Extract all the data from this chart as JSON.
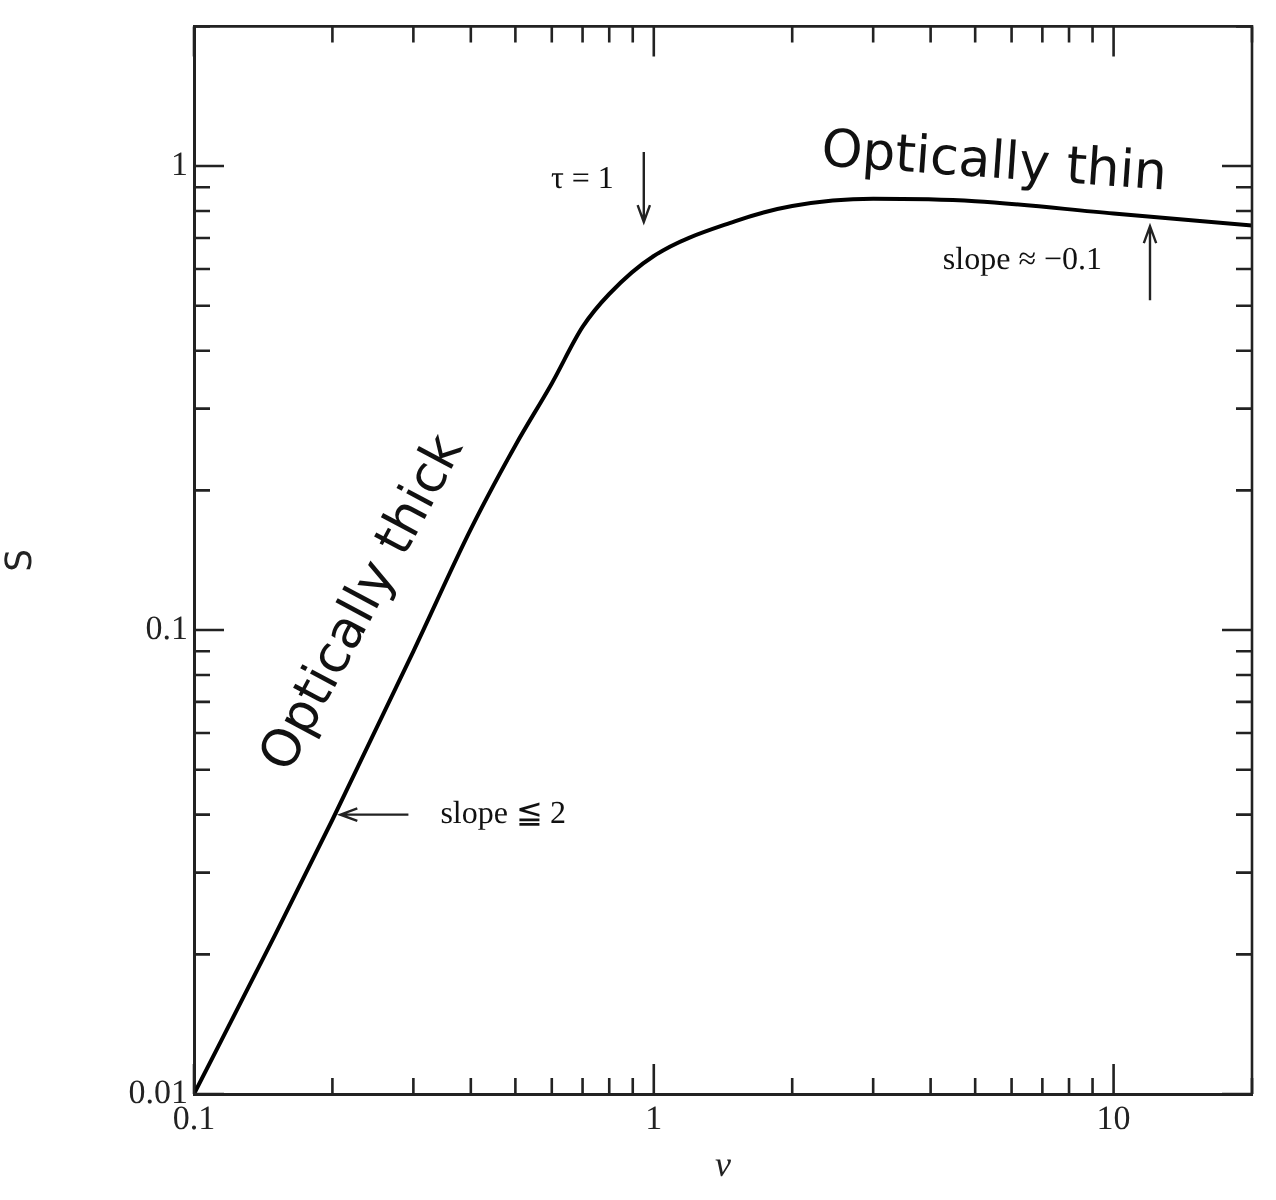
{
  "chart_data": {
    "type": "line",
    "xlabel": "ν",
    "ylabel": "S",
    "log": "xy",
    "grid": false,
    "legend": false,
    "marker": "none",
    "line_style": "solid",
    "xlim": [
      0.1,
      20
    ],
    "ylim": [
      0.01,
      2
    ],
    "xticks": [
      0.1,
      {
        "value": 0.2,
        "label": null
      },
      {
        "value": 0.3,
        "label": null
      },
      {
        "value": 0.4,
        "label": null
      },
      {
        "value": 0.5,
        "label": null
      },
      {
        "value": 0.6,
        "label": null
      },
      {
        "value": 0.7,
        "label": null
      },
      {
        "value": 0.8,
        "label": null
      },
      {
        "value": 0.9,
        "label": null
      },
      1,
      {
        "value": 2,
        "label": null
      },
      {
        "value": 3,
        "label": null
      },
      {
        "value": 4,
        "label": null
      },
      {
        "value": 5,
        "label": null
      },
      {
        "value": 6,
        "label": null
      },
      {
        "value": 7,
        "label": null
      },
      {
        "value": 8,
        "label": null
      },
      {
        "value": 9,
        "label": null
      },
      10,
      {
        "value": 20,
        "label": null
      }
    ],
    "yticks": [
      0.01,
      {
        "value": 0.02,
        "label": null
      },
      {
        "value": 0.03,
        "label": null
      },
      {
        "value": 0.04,
        "label": null
      },
      {
        "value": 0.05,
        "label": null
      },
      {
        "value": 0.06,
        "label": null
      },
      {
        "value": 0.07,
        "label": null
      },
      {
        "value": 0.08,
        "label": null
      },
      {
        "value": 0.09,
        "label": null
      },
      0.1,
      {
        "value": 0.2,
        "label": null
      },
      {
        "value": 0.3,
        "label": null
      },
      {
        "value": 0.4,
        "label": null
      },
      {
        "value": 0.5,
        "label": null
      },
      {
        "value": 0.6,
        "label": null
      },
      {
        "value": 0.7,
        "label": null
      },
      {
        "value": 0.8,
        "label": null
      },
      {
        "value": 0.9,
        "label": null
      },
      1,
      {
        "value": 2,
        "label": null
      }
    ],
    "series": [
      {
        "color": "#000000",
        "x": [
          0.1,
          0.15,
          0.2,
          0.3,
          0.4,
          0.5,
          0.6,
          0.7,
          0.8,
          1,
          1.5,
          2,
          3,
          5,
          10,
          20
        ],
        "values": [
          0.01,
          0.022,
          0.039,
          0.09,
          0.165,
          0.25,
          0.34,
          0.45,
          0.53,
          0.64,
          0.76,
          0.82,
          0.85,
          0.84,
          0.79,
          0.745
        ]
      }
    ],
    "annotations": [
      {
        "text": "τ = 1",
        "x": 1,
        "y": 0.64
      },
      "Optically thin",
      {
        "text": "slope ≈ −0.1",
        "x": 12,
        "y": 0.78
      },
      "Optically thick",
      {
        "text": "slope ≦ 2",
        "x": 0.2,
        "y": 0.04
      }
    ]
  }
}
